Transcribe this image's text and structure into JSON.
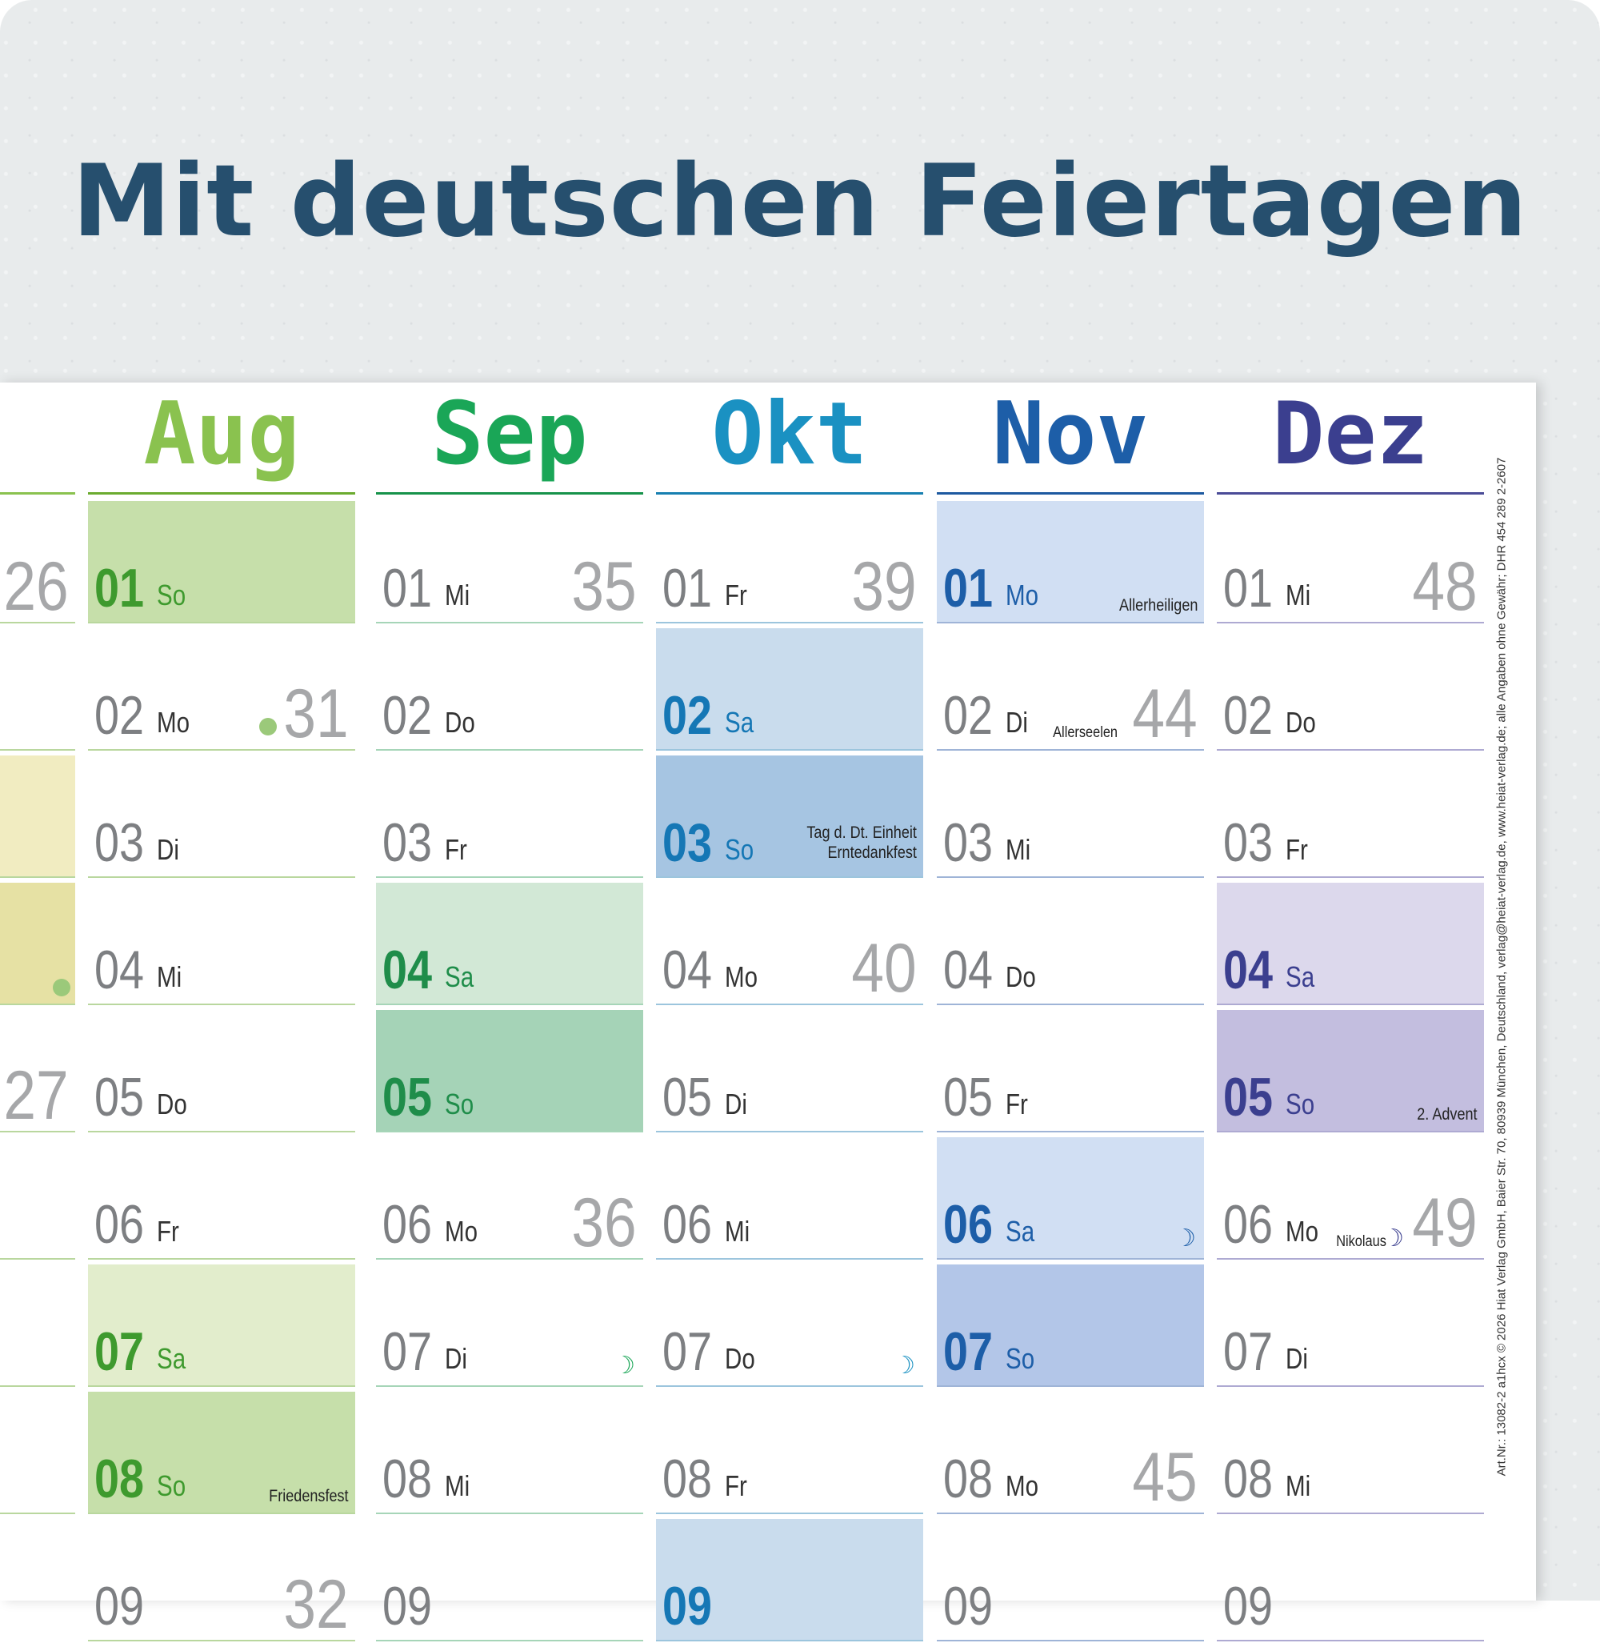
{
  "headline": "Mit deutschen Feiertagen",
  "imprint": "Art.Nr.: 13082-2  a1hcx © 2026 Hiat Verlag GmbH, Baier Str. 70, 80939 München, Deutschland, verlag@heiat-verlag.de, www.heiat-verlag.de; alle Angaben ohne Gewähr; DHR 454 289 2-2607",
  "partial_column": {
    "week_numbers": [
      "26",
      "27"
    ],
    "fill_colors": [
      "#f1ecc1",
      "#e6e1a4"
    ]
  },
  "months": [
    {
      "name": "Aug",
      "accent": "#8ac24f",
      "rule_color": "#6bab2f",
      "day_rule": "#b9d79e",
      "days": [
        {
          "n": "01",
          "wd": "So",
          "highlight": "#c6dfaa",
          "colored": true,
          "text_color": "#3e9a2e"
        },
        {
          "n": "02",
          "wd": "Mo",
          "week": "31",
          "dot": true
        },
        {
          "n": "03",
          "wd": "Di"
        },
        {
          "n": "04",
          "wd": "Mi"
        },
        {
          "n": "05",
          "wd": "Do"
        },
        {
          "n": "06",
          "wd": "Fr"
        },
        {
          "n": "07",
          "wd": "Sa",
          "highlight": "#e2edcc",
          "colored": true,
          "text_color": "#3e9a2e"
        },
        {
          "n": "08",
          "wd": "So",
          "highlight": "#c6dfaa",
          "colored": true,
          "text_color": "#3e9a2e",
          "holiday": "Friedensfest"
        },
        {
          "n": "09",
          "wd": "",
          "week": "32"
        }
      ]
    },
    {
      "name": "Sep",
      "accent": "#1aa657",
      "rule_color": "#16924a",
      "day_rule": "#a6d5b8",
      "days": [
        {
          "n": "01",
          "wd": "Mi",
          "week": "35"
        },
        {
          "n": "02",
          "wd": "Do"
        },
        {
          "n": "03",
          "wd": "Fr"
        },
        {
          "n": "04",
          "wd": "Sa",
          "highlight": "#d2e8d6",
          "colored": true,
          "text_color": "#1f8d4a"
        },
        {
          "n": "05",
          "wd": "So",
          "highlight": "#a5d3b7",
          "colored": true,
          "text_color": "#1f8d4a"
        },
        {
          "n": "06",
          "wd": "Mo",
          "week": "36"
        },
        {
          "n": "07",
          "wd": "Di",
          "moon": "☽"
        },
        {
          "n": "08",
          "wd": "Mi"
        },
        {
          "n": "09",
          "wd": ""
        }
      ]
    },
    {
      "name": "Okt",
      "accent": "#1a91c2",
      "rule_color": "#177fb0",
      "day_rule": "#9cc5dd",
      "days": [
        {
          "n": "01",
          "wd": "Fr",
          "week": "39"
        },
        {
          "n": "02",
          "wd": "Sa",
          "highlight": "#c9dced",
          "colored": true,
          "text_color": "#1577b5"
        },
        {
          "n": "03",
          "wd": "So",
          "highlight": "#a6c5e2",
          "colored": true,
          "text_color": "#1577b5",
          "holiday": "Tag d. Dt. Einheit\nErntedankfest"
        },
        {
          "n": "04",
          "wd": "Mo",
          "week": "40"
        },
        {
          "n": "05",
          "wd": "Di"
        },
        {
          "n": "06",
          "wd": "Mi"
        },
        {
          "n": "07",
          "wd": "Do",
          "moon": "☽"
        },
        {
          "n": "08",
          "wd": "Fr"
        },
        {
          "n": "09",
          "wd": "",
          "highlight": "#c9dced",
          "colored": true,
          "text_color": "#1577b5"
        }
      ]
    },
    {
      "name": "Nov",
      "accent": "#1d5ea8",
      "rule_color": "#1d59a0",
      "day_rule": "#9fb4d7",
      "days": [
        {
          "n": "01",
          "wd": "Mo",
          "highlight": "#d1dff3",
          "colored": true,
          "text_color": "#1d5ea8",
          "holiday": "Allerheiligen"
        },
        {
          "n": "02",
          "wd": "Di",
          "week": "44",
          "holiday_inline": "Allerseelen"
        },
        {
          "n": "03",
          "wd": "Mi"
        },
        {
          "n": "04",
          "wd": "Do"
        },
        {
          "n": "05",
          "wd": "Fr"
        },
        {
          "n": "06",
          "wd": "Sa",
          "highlight": "#d1dff3",
          "colored": true,
          "text_color": "#1d5ea8",
          "moon": "☽"
        },
        {
          "n": "07",
          "wd": "So",
          "highlight": "#b3c6e8",
          "colored": true,
          "text_color": "#1d5ea8"
        },
        {
          "n": "08",
          "wd": "Mo",
          "week": "45"
        },
        {
          "n": "09",
          "wd": ""
        }
      ]
    },
    {
      "name": "Dez",
      "accent": "#3b3f8f",
      "rule_color": "#4a4b97",
      "day_rule": "#aeaad2",
      "days": [
        {
          "n": "01",
          "wd": "Mi",
          "week": "48"
        },
        {
          "n": "02",
          "wd": "Do"
        },
        {
          "n": "03",
          "wd": "Fr"
        },
        {
          "n": "04",
          "wd": "Sa",
          "highlight": "#dcd8ec",
          "colored": true,
          "text_color": "#3b3f8f"
        },
        {
          "n": "05",
          "wd": "So",
          "highlight": "#c3bedf",
          "colored": true,
          "text_color": "#3b3f8f",
          "holiday": "2. Advent"
        },
        {
          "n": "06",
          "wd": "Mo",
          "week": "49",
          "holiday_inline": "Nikolaus",
          "moon": "☽"
        },
        {
          "n": "07",
          "wd": "Di"
        },
        {
          "n": "08",
          "wd": "Mi"
        },
        {
          "n": "09",
          "wd": ""
        }
      ]
    }
  ]
}
